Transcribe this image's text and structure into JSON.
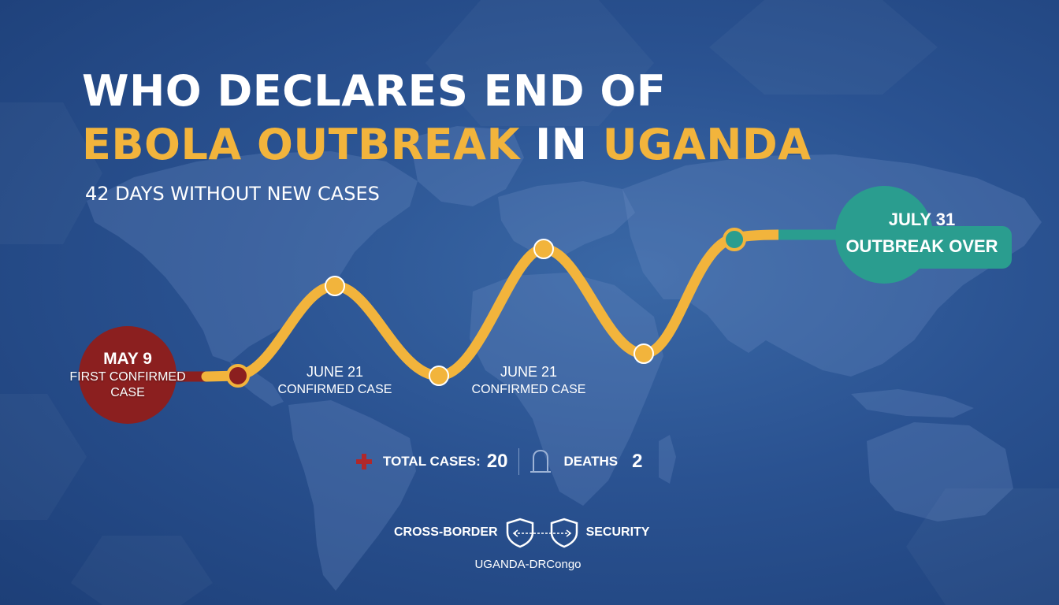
{
  "title": {
    "line1": "WHO DECLARES END OF",
    "line2_part1": "EBOLA OUTBREAK",
    "line2_part2": "IN",
    "line2_part3": "UGANDA"
  },
  "subtitle": "42 DAYS WITHOUT NEW CASES",
  "timeline": {
    "start": {
      "date": "MAY 9",
      "label": "FIRST CONFIRMED CASE"
    },
    "events": [
      {
        "date": "JUNE 21",
        "label": "CONFIRMED CASE"
      },
      {
        "date": "JUNE 21",
        "label": "CONFIRMED CASE"
      }
    ],
    "end": {
      "date": "JULY 31",
      "label": "OUTBREAK OVER"
    }
  },
  "stats": {
    "total_cases_label": "TOTAL CASES:",
    "total_cases_value": "20",
    "deaths_label": "DEATHS",
    "deaths_value": "2"
  },
  "footer": {
    "left_label": "CROSS-BORDER",
    "right_label": "SECURITY",
    "sub_label": "UGANDA-DRCongo"
  },
  "icons": {
    "stats_left": "red-cross-icon",
    "stats_right": "tombstone-icon",
    "footer_left": "shield-icon",
    "footer_right": "shield-icon"
  },
  "colors": {
    "background": "#2a5291",
    "accent_gold": "#f2b43c",
    "start_red": "#8b1f1f",
    "end_teal": "#2a9d8f",
    "text_white": "#ffffff"
  }
}
